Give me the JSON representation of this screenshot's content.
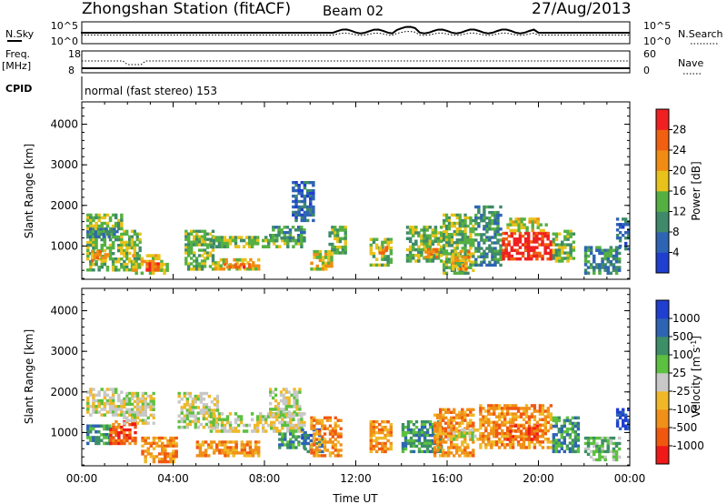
{
  "header": {
    "station": "Zhongshan Station (fitACF)",
    "beam": "Beam 02",
    "date": "27/Aug/2013"
  },
  "strip_labels": {
    "nsky": "N.Sky",
    "nsearch": "N.Search",
    "freq_line1": "Freq.",
    "freq_line2": "[MHz]",
    "nave": "Nave",
    "cpid": "CPID",
    "cpid_value": "normal (fast stereo) 153"
  },
  "strip_ticks": {
    "noise_left": [
      "10^5",
      "10^0"
    ],
    "noise_right": [
      "10^5",
      "10^0"
    ],
    "freq_left": [
      "18",
      "8"
    ],
    "nave_right": [
      "60",
      "0"
    ]
  },
  "colors": {
    "power": [
      "#1f3fd0",
      "#2e64b4",
      "#3e8a6a",
      "#55b042",
      "#e8c21a",
      "#f08c14",
      "#f06010",
      "#f02020"
    ],
    "velocity": [
      "#f01818",
      "#f05810",
      "#f09018",
      "#f0b828",
      "#c8c8c8",
      "#5cc040",
      "#3c8f66",
      "#2e64b4",
      "#1f3fd0"
    ]
  },
  "chart_data": [
    {
      "type": "heatmap",
      "title": "",
      "xlabel": "Time UT",
      "ylabel": "Slant Range [km]",
      "x_ticks": [
        "00:00",
        "04:00",
        "08:00",
        "12:00",
        "16:00",
        "20:00",
        "00:00"
      ],
      "x_range_hours": [
        0,
        24
      ],
      "y_ticks": [
        1000,
        2000,
        3000,
        4000
      ],
      "ylim": [
        180,
        4550
      ],
      "colorbar": {
        "label": "Power [dB]",
        "ticks": [
          4,
          8,
          12,
          16,
          20,
          24,
          28
        ],
        "range": [
          0,
          32
        ]
      },
      "regions": [
        {
          "t0": 0.2,
          "t1": 1.8,
          "r0": 380,
          "r1": 1800,
          "level": 3
        },
        {
          "t0": 0.2,
          "t1": 1.6,
          "r0": 1200,
          "r1": 1450,
          "level": 2
        },
        {
          "t0": 0.4,
          "t1": 1.2,
          "r0": 600,
          "r1": 900,
          "level": 5
        },
        {
          "t0": 1.8,
          "t1": 2.6,
          "r0": 380,
          "r1": 1400,
          "level": 3
        },
        {
          "t0": 2.2,
          "t1": 3.8,
          "r0": 300,
          "r1": 800,
          "level": 4
        },
        {
          "t0": 2.8,
          "t1": 3.4,
          "r0": 380,
          "r1": 600,
          "level": 6
        },
        {
          "t0": 4.5,
          "t1": 5.8,
          "r0": 400,
          "r1": 1400,
          "level": 3
        },
        {
          "t0": 5.8,
          "t1": 7.8,
          "r0": 400,
          "r1": 700,
          "level": 4
        },
        {
          "t0": 6.2,
          "t1": 7.4,
          "r0": 450,
          "r1": 580,
          "level": 6
        },
        {
          "t0": 5.6,
          "t1": 9.8,
          "r0": 950,
          "r1": 1250,
          "level": 3
        },
        {
          "t0": 8.2,
          "t1": 9.8,
          "r0": 1100,
          "r1": 1500,
          "level": 2
        },
        {
          "t0": 9.2,
          "t1": 10.2,
          "r0": 1600,
          "r1": 2600,
          "level": 1
        },
        {
          "t0": 10.0,
          "t1": 11.0,
          "r0": 400,
          "r1": 900,
          "level": 4
        },
        {
          "t0": 10.8,
          "t1": 11.6,
          "r0": 800,
          "r1": 1500,
          "level": 3
        },
        {
          "t0": 12.6,
          "t1": 13.6,
          "r0": 500,
          "r1": 1200,
          "level": 3
        },
        {
          "t0": 13.0,
          "t1": 13.4,
          "r0": 800,
          "r1": 1000,
          "level": 5
        },
        {
          "t0": 14.2,
          "t1": 15.8,
          "r0": 600,
          "r1": 1500,
          "level": 3
        },
        {
          "t0": 15.0,
          "t1": 15.6,
          "r0": 700,
          "r1": 950,
          "level": 5
        },
        {
          "t0": 15.8,
          "t1": 17.2,
          "r0": 300,
          "r1": 1800,
          "level": 3
        },
        {
          "t0": 16.2,
          "t1": 17.0,
          "r0": 400,
          "r1": 900,
          "level": 5
        },
        {
          "t0": 17.2,
          "t1": 18.4,
          "r0": 500,
          "r1": 2000,
          "level": 2
        },
        {
          "t0": 18.4,
          "t1": 20.6,
          "r0": 650,
          "r1": 1350,
          "level": 7
        },
        {
          "t0": 18.6,
          "t1": 20.4,
          "r0": 1350,
          "r1": 1700,
          "level": 4
        },
        {
          "t0": 20.6,
          "t1": 21.6,
          "r0": 600,
          "r1": 1400,
          "level": 3
        },
        {
          "t0": 22.0,
          "t1": 23.6,
          "r0": 300,
          "r1": 1000,
          "level": 2
        },
        {
          "t0": 23.4,
          "t1": 24.0,
          "r0": 900,
          "r1": 1700,
          "level": 1
        }
      ]
    },
    {
      "type": "heatmap",
      "title": "",
      "xlabel": "Time UT",
      "ylabel": "Slant Range [km]",
      "x_ticks": [
        "00:00",
        "04:00",
        "08:00",
        "12:00",
        "16:00",
        "20:00",
        "00:00"
      ],
      "x_range_hours": [
        0,
        24
      ],
      "y_ticks": [
        1000,
        2000,
        3000,
        4000
      ],
      "ylim": [
        180,
        4550
      ],
      "colorbar": {
        "label": "Velocity [m s^-1]",
        "ticks": [
          "-1000",
          "-500",
          "-100",
          "-25",
          "25",
          "100",
          "500",
          "1000"
        ],
        "range": [
          -1500,
          1500
        ]
      },
      "regions": [
        {
          "t0": 0.2,
          "t1": 1.8,
          "r0": 1400,
          "r1": 2100,
          "level": 4
        },
        {
          "t0": 0.2,
          "t1": 1.4,
          "r0": 700,
          "r1": 1200,
          "level": 6
        },
        {
          "t0": 1.2,
          "t1": 2.4,
          "r0": 700,
          "r1": 1300,
          "level": 1
        },
        {
          "t0": 1.8,
          "t1": 3.2,
          "r0": 1200,
          "r1": 2000,
          "level": 4
        },
        {
          "t0": 2.6,
          "t1": 4.2,
          "r0": 250,
          "r1": 900,
          "level": 2
        },
        {
          "t0": 4.2,
          "t1": 6.0,
          "r0": 1100,
          "r1": 2000,
          "level": 4
        },
        {
          "t0": 5.0,
          "t1": 7.8,
          "r0": 400,
          "r1": 800,
          "level": 2
        },
        {
          "t0": 5.6,
          "t1": 9.8,
          "r0": 1000,
          "r1": 1500,
          "level": 4
        },
        {
          "t0": 8.2,
          "t1": 9.6,
          "r0": 1400,
          "r1": 2100,
          "level": 4
        },
        {
          "t0": 8.6,
          "t1": 9.8,
          "r0": 600,
          "r1": 1000,
          "level": 6
        },
        {
          "t0": 9.6,
          "t1": 10.6,
          "r0": 500,
          "r1": 1100,
          "level": 7
        },
        {
          "t0": 10.0,
          "t1": 11.4,
          "r0": 400,
          "r1": 1400,
          "level": 2
        },
        {
          "t0": 12.6,
          "t1": 13.6,
          "r0": 500,
          "r1": 1300,
          "level": 2
        },
        {
          "t0": 14.0,
          "t1": 15.8,
          "r0": 500,
          "r1": 1300,
          "level": 6
        },
        {
          "t0": 15.4,
          "t1": 17.2,
          "r0": 400,
          "r1": 1600,
          "level": 2
        },
        {
          "t0": 16.0,
          "t1": 17.4,
          "r0": 800,
          "r1": 1100,
          "level": 4
        },
        {
          "t0": 17.4,
          "t1": 20.6,
          "r0": 600,
          "r1": 1700,
          "level": 2
        },
        {
          "t0": 18.6,
          "t1": 20.0,
          "r0": 800,
          "r1": 1200,
          "level": 1
        },
        {
          "t0": 20.6,
          "t1": 21.8,
          "r0": 500,
          "r1": 1400,
          "level": 6
        },
        {
          "t0": 22.0,
          "t1": 23.6,
          "r0": 300,
          "r1": 900,
          "level": 5
        },
        {
          "t0": 23.4,
          "t1": 24.0,
          "r0": 1000,
          "r1": 1600,
          "level": 8
        }
      ]
    }
  ]
}
